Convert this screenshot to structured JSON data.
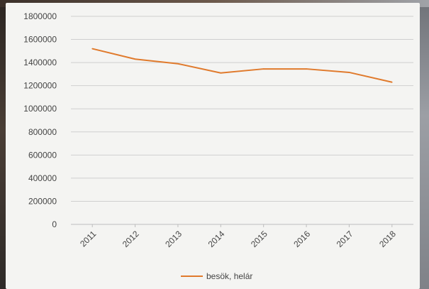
{
  "chart_data": {
    "type": "line",
    "title": "",
    "xlabel": "",
    "ylabel": "",
    "categories": [
      "2011",
      "2012",
      "2013",
      "2014",
      "2015",
      "2016",
      "2017",
      "2018"
    ],
    "series": [
      {
        "name": "besök, helár",
        "values": [
          1520000,
          1430000,
          1390000,
          1310000,
          1345000,
          1345000,
          1315000,
          1230000
        ],
        "color": "#e07a2c"
      }
    ],
    "ylim": [
      0,
      1800000
    ],
    "yticks": [
      "0",
      "200000",
      "400000",
      "600000",
      "800000",
      "1000000",
      "1200000",
      "1400000",
      "1600000",
      "1800000"
    ],
    "grid": true,
    "legend_position": "bottom",
    "colors": {
      "grid": "#cfcfcf",
      "axis": "#bdbdbd",
      "text": "#444444"
    }
  }
}
